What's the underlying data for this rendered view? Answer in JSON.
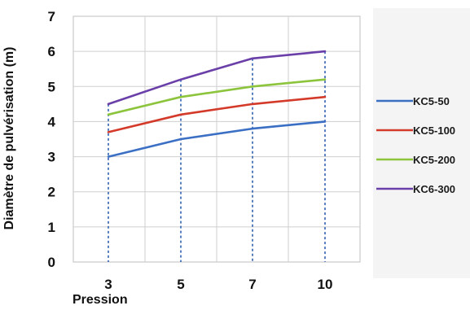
{
  "chart_data": {
    "type": "line",
    "title": "",
    "xlabel": "Pression",
    "ylabel": "Diamètre de pulvérisation (m)",
    "categories": [
      "3",
      "5",
      "7",
      "10"
    ],
    "ylim": [
      0,
      7
    ],
    "yticks": [
      "0",
      "1",
      "2",
      "3",
      "4",
      "5",
      "6",
      "7"
    ],
    "grid": true,
    "drop_lines": true,
    "legend_position": "right",
    "series": [
      {
        "name": "KC5-50",
        "color": "#3a6fc4",
        "values": [
          3.0,
          3.5,
          3.8,
          4.0
        ]
      },
      {
        "name": "KC5-100",
        "color": "#d43a2a",
        "values": [
          3.7,
          4.2,
          4.5,
          4.7
        ]
      },
      {
        "name": "KC5-200",
        "color": "#8cc43c",
        "values": [
          4.2,
          4.7,
          5.0,
          5.2
        ]
      },
      {
        "name": "KC6-300",
        "color": "#6a3fa8",
        "values": [
          4.5,
          5.2,
          5.8,
          6.0
        ]
      }
    ]
  }
}
